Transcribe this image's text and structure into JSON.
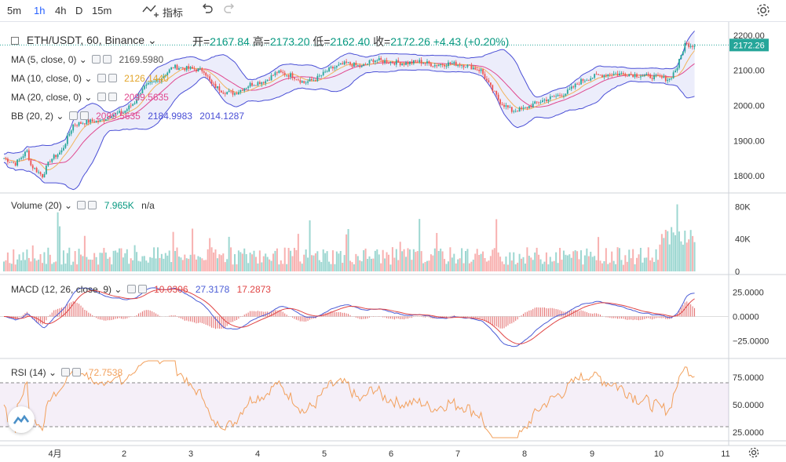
{
  "toolbar": {
    "timeframes": [
      "5m",
      "1h",
      "4h",
      "D",
      "15m"
    ],
    "active_timeframe": "1h",
    "indicators_label": "指标",
    "icons": [
      "indicators-icon",
      "undo-icon",
      "redo-icon",
      "settings-gear-icon"
    ]
  },
  "symbol": {
    "title": "ETH/USDT, 60, Binance",
    "open_label": "开=",
    "open": "2167.84",
    "high_label": "高=",
    "high": "2173.20",
    "low_label": "低=",
    "low": "2162.40",
    "close_label": "收=",
    "close": "2172.26",
    "change": "+4.43 (+0.20%)"
  },
  "indicators": {
    "ma5": {
      "label": "MA (5, close, 0)",
      "value": "2169.5980",
      "color": "#555555"
    },
    "ma10": {
      "label": "MA (10, close, 0)",
      "value": "2126.1440",
      "color": "#f2a33a"
    },
    "ma20": {
      "label": "MA (20, close, 0)",
      "value": "2099.5635",
      "color": "#e0498f"
    },
    "bb": {
      "label": "BB (20, 2)",
      "v1": "2099.5635",
      "v2": "2184.9983",
      "v3": "2014.1287"
    },
    "volume": {
      "label": "Volume (20)",
      "value": "7.965K",
      "extra": "n/a"
    },
    "macd": {
      "label": "MACD (12, 26, close, 9)",
      "v1": "10.0306",
      "v2": "27.3178",
      "v3": "17.2873"
    },
    "rsi": {
      "label": "RSI (14)",
      "value": "72.7538"
    }
  },
  "price_axis": {
    "ticks": [
      "2200.00",
      "2100.00",
      "2000.00",
      "1900.00",
      "1800.00"
    ],
    "last_price": "2172.26"
  },
  "volume_axis": {
    "ticks": [
      "80K",
      "40K",
      "0"
    ]
  },
  "macd_axis": {
    "ticks": [
      "25.0000",
      "0.0000",
      "−25.0000"
    ]
  },
  "rsi_axis": {
    "ticks": [
      "75.0000",
      "50.0000",
      "25.0000"
    ]
  },
  "time_axis": {
    "labels": [
      "4月",
      "2",
      "3",
      "4",
      "5",
      "6",
      "7",
      "8",
      "9",
      "10",
      "11"
    ]
  },
  "colors": {
    "up": "#26a69a",
    "down": "#ef5350",
    "bb_band": "#4a4fd6",
    "rsi_line": "#f2a05c",
    "macd_line": "#4a5cd6",
    "signal_line": "#e04545"
  },
  "chart_data": {
    "type": "candlestick",
    "price_range": [
      1760,
      2220
    ],
    "anchors": [
      [
        0,
        1850
      ],
      [
        6,
        1835
      ],
      [
        12,
        1870
      ],
      [
        14,
        1830
      ],
      [
        20,
        1800
      ],
      [
        24,
        1845
      ],
      [
        30,
        1870
      ],
      [
        36,
        1945
      ],
      [
        44,
        1955
      ],
      [
        50,
        1955
      ],
      [
        56,
        1975
      ],
      [
        62,
        1980
      ],
      [
        68,
        2010
      ],
      [
        72,
        2050
      ],
      [
        80,
        2070
      ],
      [
        88,
        2110
      ],
      [
        96,
        2105
      ],
      [
        104,
        2100
      ],
      [
        108,
        2060
      ],
      [
        114,
        2040
      ],
      [
        120,
        2035
      ],
      [
        128,
        2060
      ],
      [
        136,
        2070
      ],
      [
        142,
        2095
      ],
      [
        150,
        2085
      ],
      [
        156,
        2065
      ],
      [
        162,
        2075
      ],
      [
        170,
        2105
      ],
      [
        178,
        2120
      ],
      [
        186,
        2110
      ],
      [
        192,
        2130
      ],
      [
        200,
        2125
      ],
      [
        208,
        2120
      ],
      [
        216,
        2125
      ],
      [
        224,
        2115
      ],
      [
        232,
        2120
      ],
      [
        240,
        2115
      ],
      [
        248,
        2100
      ],
      [
        252,
        2060
      ],
      [
        258,
        2010
      ],
      [
        264,
        1985
      ],
      [
        270,
        1990
      ],
      [
        278,
        2010
      ],
      [
        286,
        2025
      ],
      [
        292,
        2035
      ],
      [
        300,
        2070
      ],
      [
        308,
        2085
      ],
      [
        316,
        2090
      ],
      [
        324,
        2090
      ],
      [
        332,
        2085
      ],
      [
        340,
        2080
      ],
      [
        346,
        2075
      ],
      [
        350,
        2110
      ],
      [
        354,
        2175
      ],
      [
        358,
        2172
      ]
    ],
    "volume_scale_max": 95,
    "macd_range": [
      -40,
      40
    ],
    "rsi_range": [
      20,
      90
    ]
  }
}
